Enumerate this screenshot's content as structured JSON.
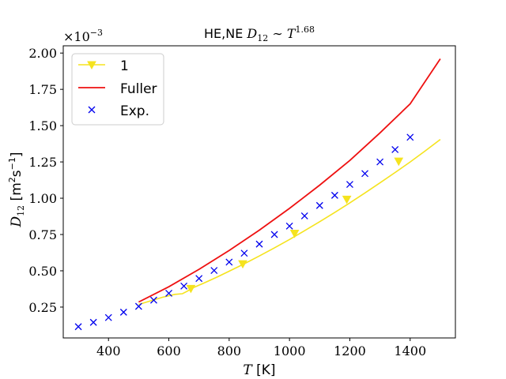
{
  "chart_data": {
    "type": "line",
    "title": {
      "prefix": "HE,NE ",
      "math_var": "D",
      "math_sub": "12",
      "math_rel": " ∼ ",
      "math_T": "T",
      "math_exp": "1.68"
    },
    "xlabel": {
      "var": "T",
      "unit": " [K]"
    },
    "ylabel": {
      "var": "D",
      "sub": "12",
      "unit_pre": " [m",
      "unit_sup1": "2",
      "unit_mid": "s",
      "unit_sup2": "−1",
      "unit_post": "]"
    },
    "offset_text": {
      "base": "×10",
      "exp": "−3"
    },
    "xlim": [
      250,
      1550
    ],
    "ylim": [
      3.75e-05,
      0.00205
    ],
    "x_ticks": [
      400,
      600,
      800,
      1000,
      1200,
      1400
    ],
    "x_tick_labels": [
      "400",
      "600",
      "800",
      "1000",
      "1200",
      "1400"
    ],
    "y_ticks": [
      0.00025,
      0.0005,
      0.00075,
      0.001,
      0.00125,
      0.0015,
      0.00175,
      0.002
    ],
    "y_tick_labels": [
      "0.25",
      "0.50",
      "0.75",
      "1.00",
      "1.25",
      "1.50",
      "1.75",
      "2.00"
    ],
    "grid": false,
    "legend_position": "top-left",
    "series": [
      {
        "name": "1",
        "kind": "line-marker",
        "color": "#f5e31e",
        "marker": "triangle-down",
        "x": [
          500,
          540,
          580,
          620,
          645,
          660,
          680,
          720,
          760,
          800,
          850,
          900,
          950,
          1000,
          1050,
          1100,
          1150,
          1200,
          1250,
          1300,
          1350,
          1400,
          1450,
          1500
        ],
        "y": [
          0.000268,
          0.000293,
          0.000318,
          0.000338,
          0.000342,
          0.000358,
          0.000383,
          0.000419,
          0.000457,
          0.000497,
          0.000548,
          0.000602,
          0.000658,
          0.000716,
          0.000776,
          0.000838,
          0.000902,
          0.000968,
          0.001036,
          0.001106,
          0.001177,
          0.00125,
          0.001326,
          0.001405
        ],
        "marker_x": [
          673,
          845,
          1017,
          1190,
          1362
        ],
        "marker_y": [
          0.000378,
          0.000548,
          0.000758,
          0.000993,
          0.001255
        ]
      },
      {
        "name": "Fuller",
        "kind": "line",
        "color": "#ee1111",
        "x": [
          500,
          600,
          700,
          800,
          900,
          1000,
          1100,
          1200,
          1300,
          1400,
          1500
        ],
        "y": [
          0.000285,
          0.00039,
          0.00051,
          0.00064,
          0.00078,
          0.00093,
          0.00109,
          0.00126,
          0.00145,
          0.00165,
          0.00196
        ]
      },
      {
        "name": "Exp.",
        "kind": "scatter",
        "color": "#0000ee",
        "marker": "x",
        "x": [
          300,
          350,
          400,
          450,
          500,
          550,
          600,
          650,
          700,
          750,
          800,
          850,
          900,
          950,
          1000,
          1050,
          1100,
          1150,
          1200,
          1250,
          1300,
          1350,
          1400
        ],
        "y": [
          0.000115,
          0.000145,
          0.000178,
          0.000215,
          0.000255,
          0.000298,
          0.000345,
          0.000395,
          0.000447,
          0.000502,
          0.00056,
          0.000621,
          0.000684,
          0.00075,
          0.000808,
          0.000878,
          0.00095,
          0.00102,
          0.001095,
          0.00117,
          0.00125,
          0.001335,
          0.00142
        ]
      }
    ]
  }
}
